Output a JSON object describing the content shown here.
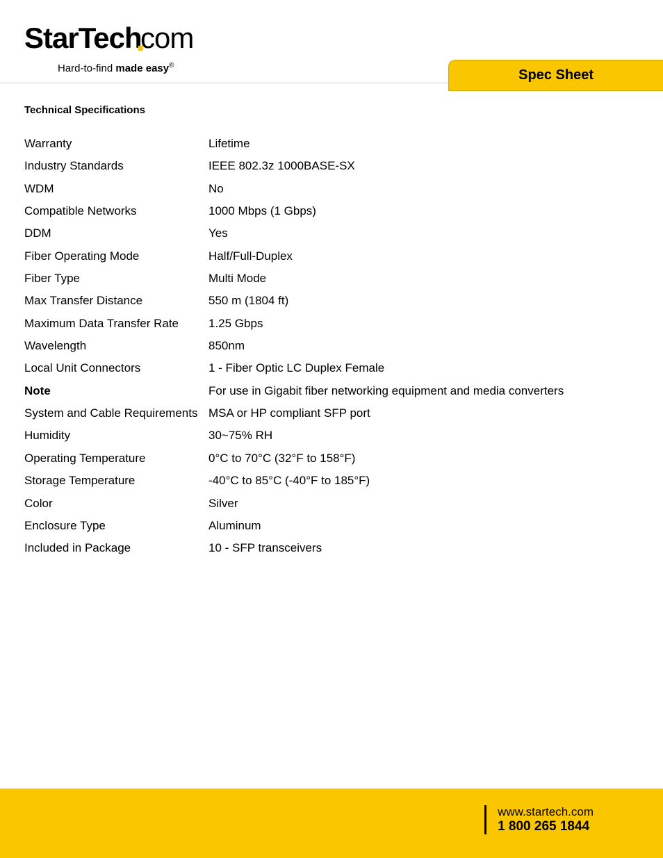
{
  "header": {
    "logo_part1": "StarTech",
    "logo_part2": "com",
    "tagline_prefix": "Hard-to-find ",
    "tagline_bold": "made easy",
    "tagline_reg": "®"
  },
  "tab": {
    "label": "Spec Sheet"
  },
  "section_title": "Technical Specifications",
  "specs": [
    {
      "label": "Warranty",
      "value": "Lifetime",
      "bold": false
    },
    {
      "label": "Industry Standards",
      "value": "IEEE 802.3z 1000BASE-SX",
      "bold": false
    },
    {
      "label": "WDM",
      "value": "No",
      "bold": false
    },
    {
      "label": "Compatible Networks",
      "value": "1000 Mbps (1 Gbps)",
      "bold": false
    },
    {
      "label": "DDM",
      "value": "Yes",
      "bold": false
    },
    {
      "label": "Fiber Operating Mode",
      "value": "Half/Full-Duplex",
      "bold": false
    },
    {
      "label": "Fiber Type",
      "value": "Multi Mode",
      "bold": false
    },
    {
      "label": "Max Transfer Distance",
      "value": "550 m (1804 ft)",
      "bold": false
    },
    {
      "label": "Maximum Data Transfer Rate",
      "value": "1.25 Gbps",
      "bold": false
    },
    {
      "label": "Wavelength",
      "value": "850nm",
      "bold": false
    },
    {
      "label": "Local Unit Connectors",
      "value": "1 - Fiber Optic LC Duplex Female",
      "bold": false
    },
    {
      "label": "Note",
      "value": "For use in Gigabit fiber networking equipment and media converters",
      "bold": true
    },
    {
      "label": "System and Cable Requirements",
      "value": "MSA or HP compliant SFP port",
      "bold": false
    },
    {
      "label": "Humidity",
      "value": "30~75% RH",
      "bold": false
    },
    {
      "label": "Operating Temperature",
      "value": "0°C to 70°C (32°F to 158°F)",
      "bold": false
    },
    {
      "label": "Storage Temperature",
      "value": "-40°C to 85°C (-40°F to 185°F)",
      "bold": false
    },
    {
      "label": "Color",
      "value": "Silver",
      "bold": false
    },
    {
      "label": "Enclosure Type",
      "value": "Aluminum",
      "bold": false
    },
    {
      "label": "Included in Package",
      "value": "10 - SFP transceivers",
      "bold": false
    }
  ],
  "footer": {
    "url": "www.startech.com",
    "phone": "1 800 265 1844"
  },
  "colors": {
    "brand_yellow": "#f9c600",
    "text": "#000000",
    "rule": "#d0d0d0",
    "background": "#ffffff"
  }
}
